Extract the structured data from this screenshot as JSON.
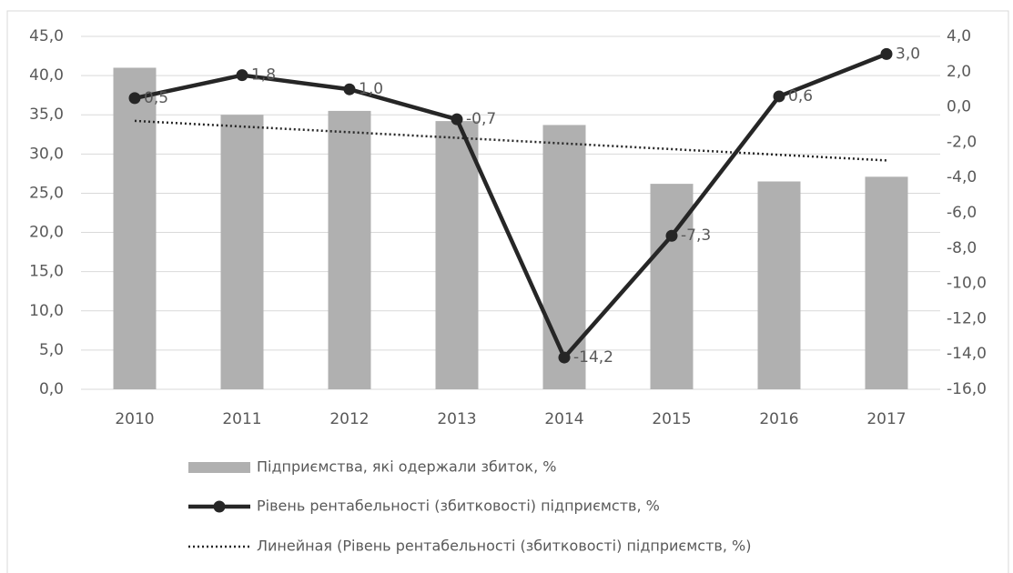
{
  "chart_data": {
    "type": "bar_line",
    "categories": [
      "2010",
      "2011",
      "2012",
      "2013",
      "2014",
      "2015",
      "2016",
      "2017"
    ],
    "series": [
      {
        "name": "Підприємства, які одержали збиток, %",
        "type": "bar",
        "color": "#b0b0b0",
        "values": [
          41.0,
          35.0,
          35.5,
          34.2,
          33.7,
          26.2,
          26.5,
          27.1
        ]
      },
      {
        "name": "Рівень рентабельності (збитковості) підприємств, %",
        "type": "line",
        "axis": "y2",
        "color": "#262626",
        "values": [
          0.5,
          1.8,
          1.0,
          -0.7,
          -14.2,
          -7.3,
          0.6,
          3.0
        ],
        "value_labels": [
          "0,5",
          "1,8",
          "1,0",
          "-0,7",
          "-14,2",
          "-7,3",
          "0,6",
          "3,0"
        ]
      },
      {
        "name": "Линейная (Рівень рентабельності (збитковості) підприємств, %)",
        "type": "trend",
        "axis": "y2",
        "color": "#262626",
        "values": [
          -0.79,
          -1.11,
          -1.43,
          -1.75,
          -2.07,
          -2.39,
          -2.71,
          -3.03
        ]
      }
    ],
    "ylim": [
      0,
      45
    ],
    "yticks": [
      {
        "value": 0,
        "label": "0,0"
      },
      {
        "value": 5,
        "label": "5,0"
      },
      {
        "value": 10,
        "label": "10,0"
      },
      {
        "value": 15,
        "label": "15,0"
      },
      {
        "value": 20,
        "label": "20,0"
      },
      {
        "value": 25,
        "label": "25,0"
      },
      {
        "value": 30,
        "label": "30,0"
      },
      {
        "value": 35,
        "label": "35,0"
      },
      {
        "value": 40,
        "label": "40,0"
      },
      {
        "value": 45,
        "label": "45,0"
      }
    ],
    "y2lim": [
      -16,
      4
    ],
    "y2ticks": [
      {
        "value": -16,
        "label": "-16,0"
      },
      {
        "value": -14,
        "label": "-14,0"
      },
      {
        "value": -12,
        "label": "-12,0"
      },
      {
        "value": -10,
        "label": "-10,0"
      },
      {
        "value": -8,
        "label": "-8,0"
      },
      {
        "value": -6,
        "label": "-6,0"
      },
      {
        "value": -4,
        "label": "-4,0"
      },
      {
        "value": -2,
        "label": "-2,0"
      },
      {
        "value": 0,
        "label": "0,0"
      },
      {
        "value": 2,
        "label": "2,0"
      },
      {
        "value": 4,
        "label": "4,0"
      }
    ],
    "grid": true
  }
}
